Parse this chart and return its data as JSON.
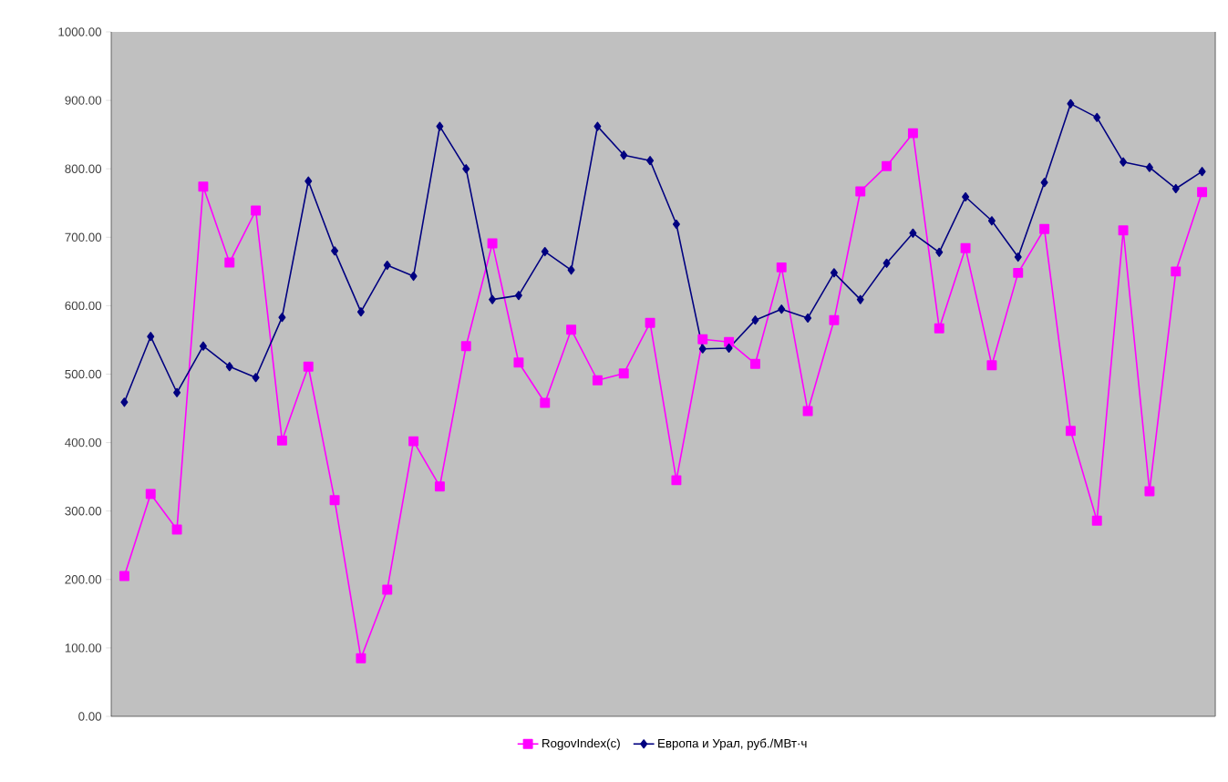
{
  "chart_data": {
    "type": "line",
    "categories": [
      null,
      null,
      null,
      null,
      null,
      null,
      null,
      null,
      null,
      null,
      null,
      null,
      null,
      null,
      null,
      null,
      null,
      null,
      null,
      null,
      null,
      null,
      null,
      null,
      null,
      null,
      null,
      null,
      null,
      null,
      null,
      null,
      null,
      null,
      null,
      null,
      null,
      null,
      null,
      null,
      null,
      null
    ],
    "series": [
      {
        "name": "RogovIndex(c)",
        "color": "#ff00ff",
        "marker": "square",
        "values": [
          205,
          325,
          273,
          774,
          663,
          739,
          403,
          511,
          316,
          85,
          185,
          402,
          336,
          541,
          691,
          517,
          458,
          565,
          491,
          501,
          575,
          345,
          551,
          547,
          515,
          656,
          446,
          579,
          767,
          804,
          852,
          567,
          684,
          513,
          648,
          712,
          417,
          286,
          710,
          329,
          650,
          766
        ]
      },
      {
        "name": "Европа и Урал, руб./МВт·ч",
        "color": "#000080",
        "marker": "diamond",
        "values": [
          459,
          555,
          473,
          541,
          511,
          495,
          583,
          782,
          680,
          591,
          659,
          643,
          862,
          800,
          609,
          615,
          679,
          652,
          862,
          820,
          812,
          719,
          537,
          538,
          579,
          595,
          582,
          648,
          609,
          662,
          706,
          678,
          759,
          724,
          671,
          780,
          895,
          875,
          810,
          802,
          771,
          796
        ]
      }
    ],
    "ylim": [
      0,
      1000
    ],
    "yticks": [
      {
        "value": 0,
        "label": "0.00"
      },
      {
        "value": 100,
        "label": "100.00"
      },
      {
        "value": 200,
        "label": "200.00"
      },
      {
        "value": 300,
        "label": "300.00"
      },
      {
        "value": 400,
        "label": "400.00"
      },
      {
        "value": 500,
        "label": "500.00"
      },
      {
        "value": 600,
        "label": "600.00"
      },
      {
        "value": 700,
        "label": "700.00"
      },
      {
        "value": 800,
        "label": "800.00"
      },
      {
        "value": 900,
        "label": "900.00"
      },
      {
        "value": 1000,
        "label": "1000.00"
      }
    ],
    "grid": false,
    "legend": "bottom",
    "line_style": "solid"
  }
}
